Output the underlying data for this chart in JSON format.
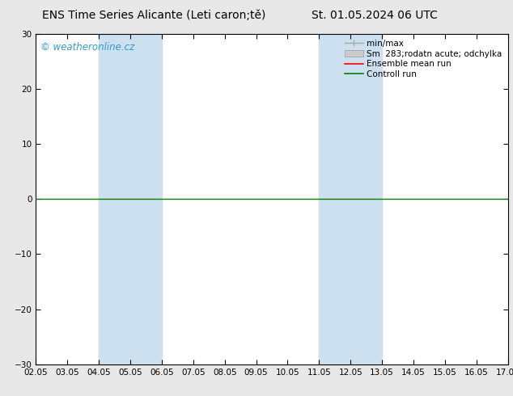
{
  "title_left": "ENS Time Series Alicante (Leti caron;tě)",
  "title_right": "St. 01.05.2024 06 UTC",
  "watermark": "© weatheronline.cz",
  "watermark_color": "#3399cc",
  "ylim": [
    -30,
    30
  ],
  "yticks": [
    -30,
    -20,
    -10,
    0,
    10,
    20,
    30
  ],
  "x_start": 0,
  "x_end": 15,
  "xtick_labels": [
    "02.05",
    "03.05",
    "04.05",
    "05.05",
    "06.05",
    "07.05",
    "08.05",
    "09.05",
    "10.05",
    "11.05",
    "12.05",
    "13.05",
    "14.05",
    "15.05",
    "16.05",
    "17.05"
  ],
  "xtick_positions": [
    0,
    1,
    2,
    3,
    4,
    5,
    6,
    7,
    8,
    9,
    10,
    11,
    12,
    13,
    14,
    15
  ],
  "shade_bands": [
    {
      "x_start": 2,
      "x_end": 4,
      "color": "#cce0f0"
    },
    {
      "x_start": 9,
      "x_end": 11,
      "color": "#cce0f0"
    }
  ],
  "control_run_color": "#008000",
  "ensemble_mean_color": "#ff0000",
  "minmax_color": "#aaaaaa",
  "std_dev_color": "#cccccc",
  "background_color": "#e8e8e8",
  "axis_bg_color": "#ffffff",
  "zero_line_color": "#000000",
  "legend_labels": [
    "min/max",
    "Sm  283;rodatn acute; odchylka",
    "Ensemble mean run",
    "Controll run"
  ],
  "title_fontsize": 10,
  "axis_fontsize": 7.5,
  "watermark_fontsize": 8.5,
  "legend_fontsize": 7.5
}
